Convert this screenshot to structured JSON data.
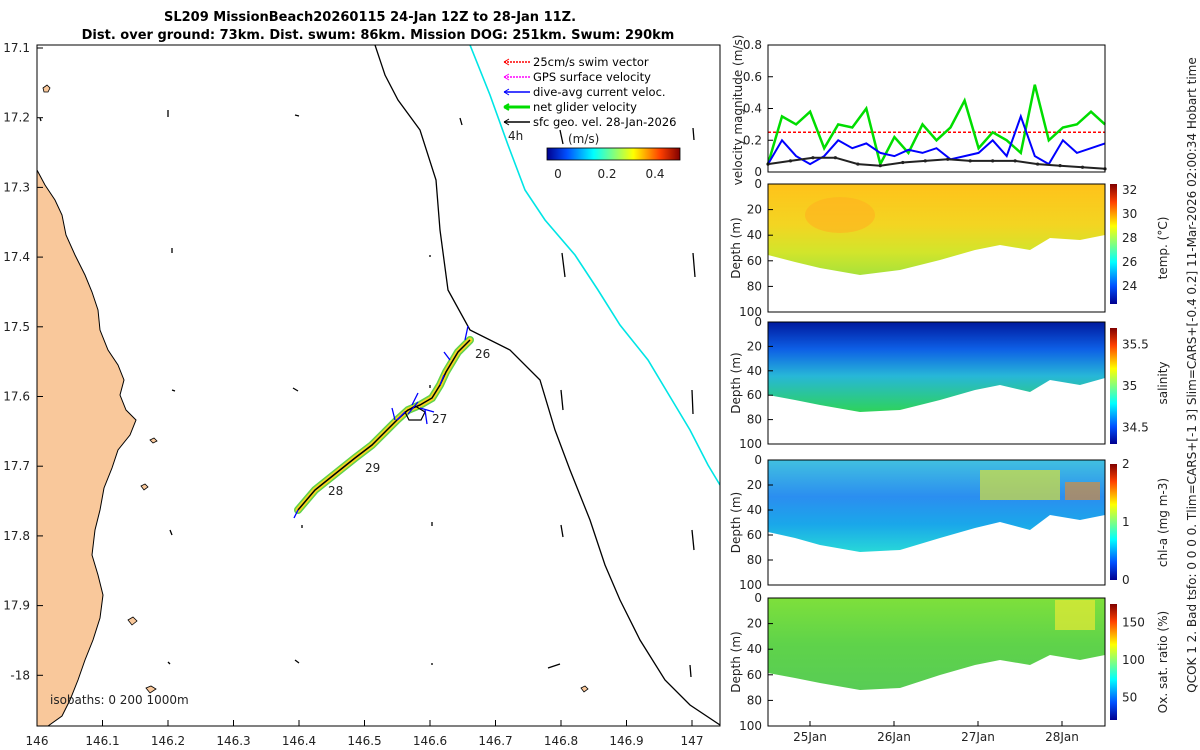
{
  "title": {
    "line1": "SL209 MissionBeach20260115 24-Jan 12Z to 28-Jan 11Z.",
    "line2": "Dist. over ground: 73km. Dist. swum: 86km. Mission DOG: 251km. Swum: 290km"
  },
  "side_label": "QCOK 1 2. Bad tsfo: 0 0 0 0. Tlim=CARS+[-1 3] Slim=CARS+[-0.4 0.2] 11-Mar-2026 02:00:34 Hobart time",
  "colors": {
    "land": "#f9c89b",
    "track": "#000000",
    "shelf": "#00e5e5",
    "swim": "#ff0000",
    "gps": "#ff00ff",
    "dive": "#0000ff",
    "net": "#00dd00",
    "sfc": "#000000"
  },
  "map": {
    "x_ticks": [
      "146",
      "146.1",
      "146.2",
      "146.3",
      "146.4",
      "146.5",
      "146.6",
      "146.7",
      "146.8",
      "146.9",
      "147"
    ],
    "y_ticks": [
      "17.1",
      "17.2",
      "17.3",
      "17.4",
      "17.5",
      "17.6",
      "17.7",
      "17.8",
      "17.9",
      "-18"
    ],
    "legend": [
      "25cm/s swim vector",
      "GPS surface velocity",
      "dive-avg current veloc.",
      "net glider velocity",
      "sfc geo. vel. 28-Jan-2026"
    ],
    "scale_label": "4h",
    "colorbar_title": "(m/s)",
    "colorbar_ticks": [
      "0",
      "0.2",
      "0.4"
    ],
    "isobaths": "isobaths: 0   200  1000m",
    "day_labels": [
      "26",
      "27",
      "29",
      "28"
    ]
  },
  "chart_data": [
    {
      "type": "line",
      "title": "velocity magnitude",
      "ylabel": "velocity magnitude (m/s)",
      "ylim": [
        0,
        0.8
      ],
      "yticks": [
        "0",
        "0.2",
        "0.4",
        "0.6",
        "0.8"
      ],
      "series": [
        {
          "name": "25cm/s swim vector",
          "values": [
            0.25,
            0.25
          ]
        },
        {
          "name": "net glider velocity",
          "values": [
            0.05,
            0.35,
            0.3,
            0.38,
            0.15,
            0.3,
            0.28,
            0.4,
            0.05,
            0.22,
            0.12,
            0.3,
            0.2,
            0.28,
            0.45,
            0.15,
            0.25,
            0.2,
            0.12,
            0.55,
            0.2,
            0.28,
            0.3,
            0.38,
            0.3
          ]
        },
        {
          "name": "dive-avg current veloc.",
          "values": [
            0.05,
            0.2,
            0.1,
            0.05,
            0.1,
            0.2,
            0.15,
            0.18,
            0.12,
            0.1,
            0.14,
            0.12,
            0.15,
            0.08,
            0.1,
            0.12,
            0.2,
            0.1,
            0.35,
            0.1,
            0.05,
            0.2,
            0.12,
            0.15,
            0.18
          ]
        },
        {
          "name": "sfc geo. vel.",
          "values": [
            0.05,
            0.07,
            0.09,
            0.09,
            0.05,
            0.04,
            0.06,
            0.07,
            0.08,
            0.07,
            0.07,
            0.07,
            0.05,
            0.04,
            0.03,
            0.02
          ]
        }
      ]
    },
    {
      "type": "heatmap",
      "ylabel": "Depth (m)",
      "yticks": [
        "0",
        "20",
        "40",
        "60",
        "80",
        "100"
      ],
      "cbar_label": "temp. (°C)",
      "cbar_ticks": [
        "24",
        "26",
        "28",
        "30",
        "32"
      ]
    },
    {
      "type": "heatmap",
      "ylabel": "Depth (m)",
      "yticks": [
        "0",
        "20",
        "40",
        "60",
        "80",
        "100"
      ],
      "cbar_label": "salinity",
      "cbar_ticks": [
        "34.5",
        "35",
        "35.5"
      ]
    },
    {
      "type": "heatmap",
      "ylabel": "Depth (m)",
      "yticks": [
        "0",
        "20",
        "40",
        "60",
        "80",
        "100"
      ],
      "cbar_label": "chl-a  (mg m-3)",
      "cbar_ticks": [
        "0",
        "1",
        "2"
      ]
    },
    {
      "type": "heatmap",
      "ylabel": "Depth (m)",
      "yticks": [
        "0",
        "20",
        "40",
        "60",
        "80",
        "100"
      ],
      "cbar_label": "Ox. sat. ratio (%)",
      "cbar_ticks": [
        "50",
        "100",
        "150"
      ],
      "x_ticks": [
        "25Jan",
        "26Jan",
        "27Jan",
        "28Jan"
      ]
    }
  ]
}
